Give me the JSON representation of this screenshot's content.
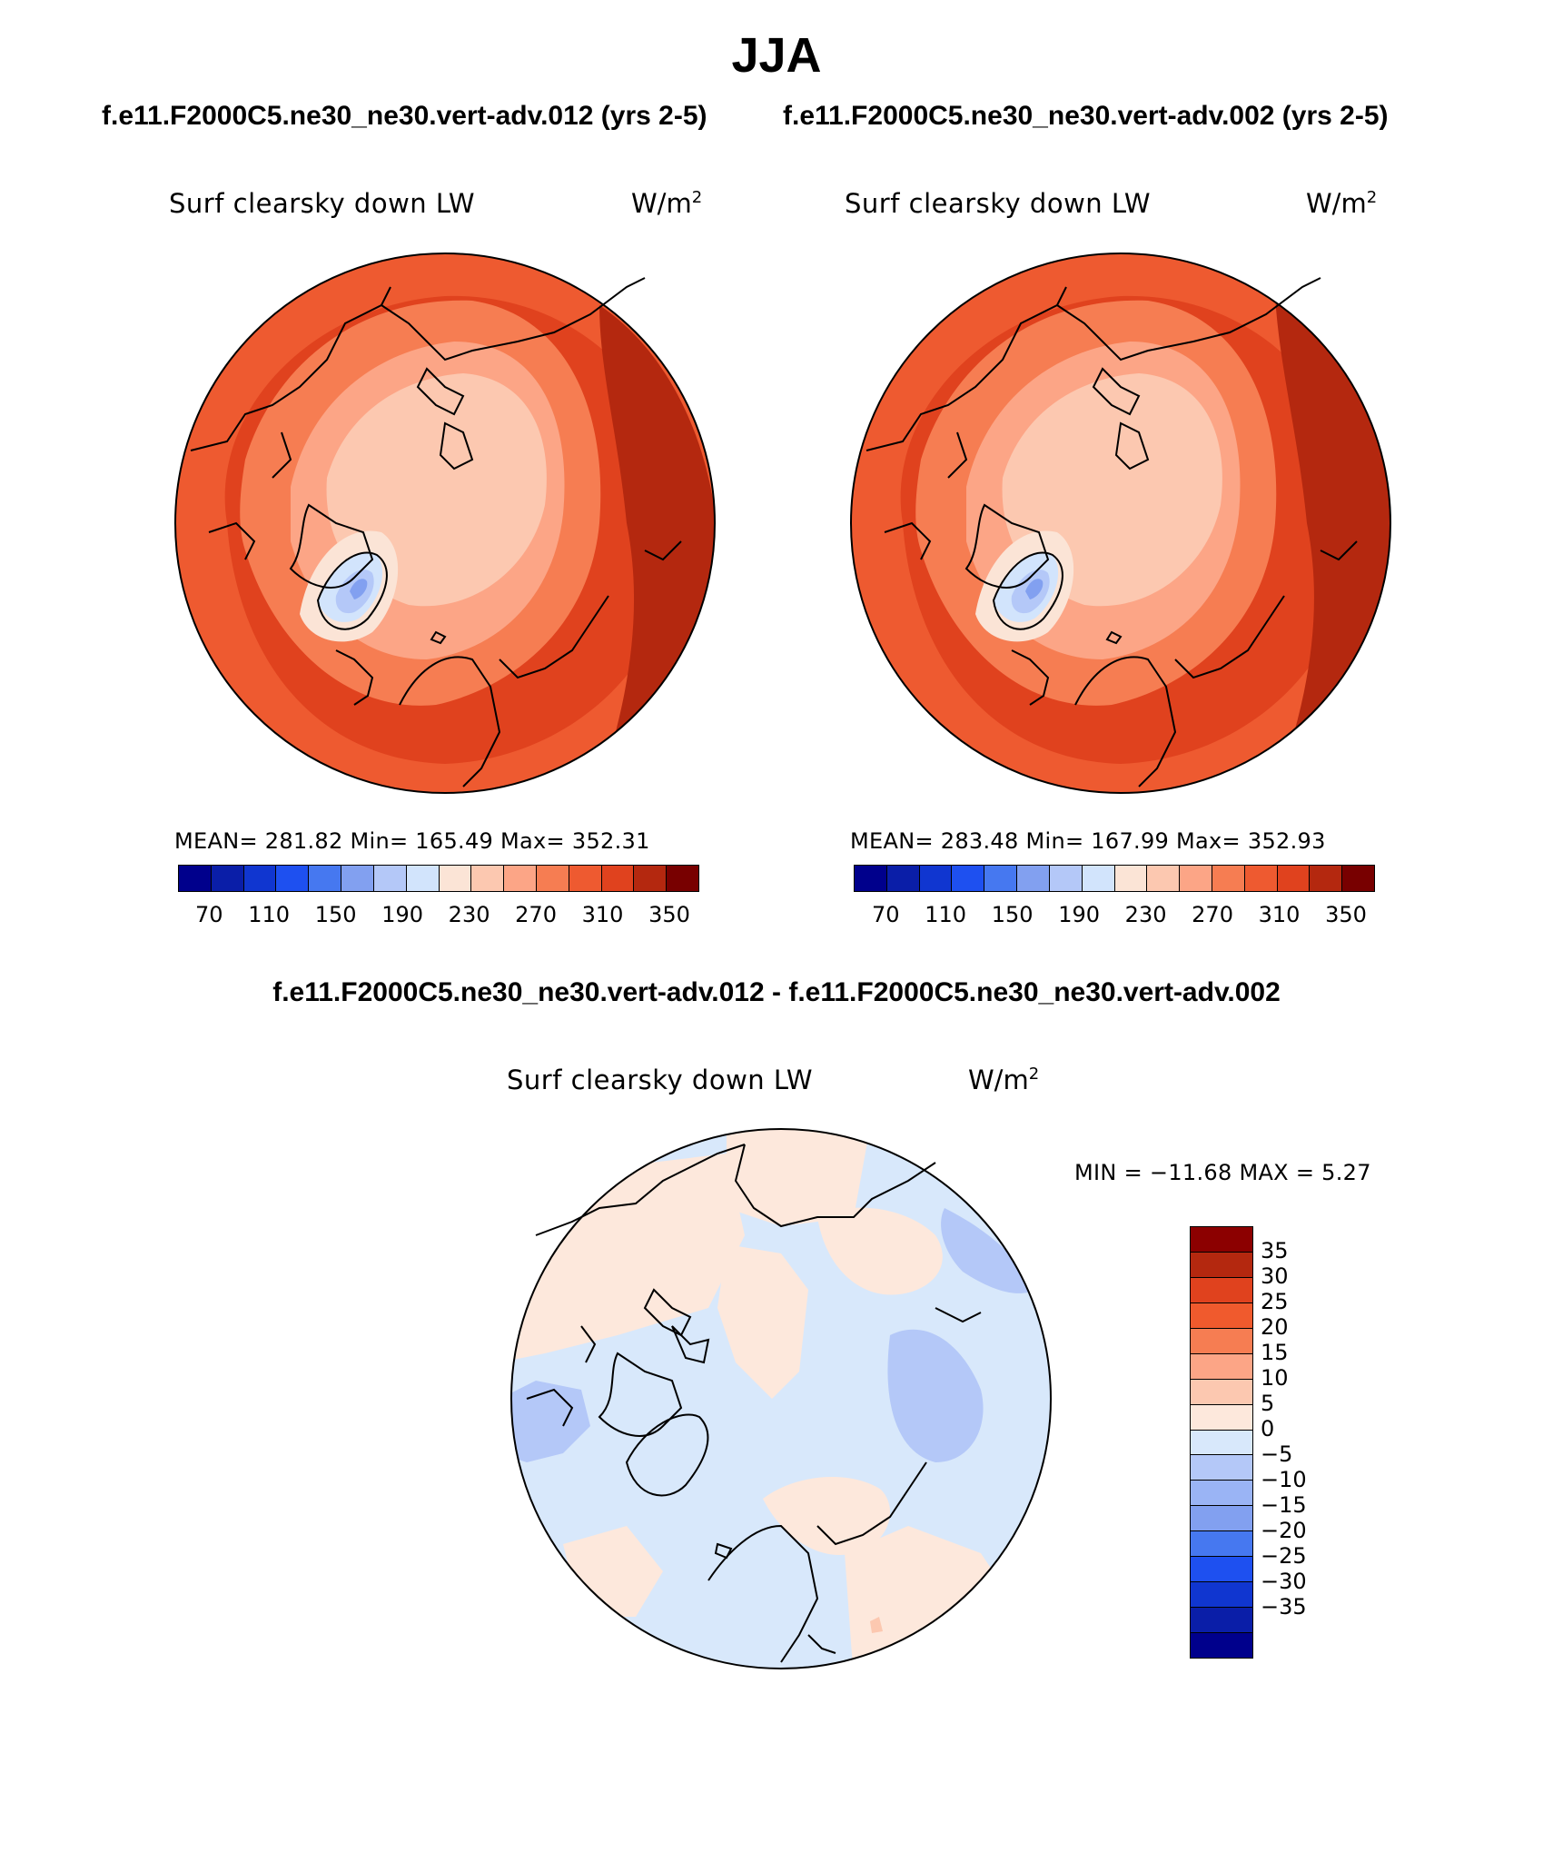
{
  "season": "JJA",
  "panels": [
    {
      "case": "f.e11.F2000C5.ne30_ne30.vert-adv.012 (yrs 2-5)",
      "variable": "Surf clearsky down LW",
      "units": "W/m",
      "units_sup": "2",
      "stats": "MEAN= 281.82   Min= 165.49   Max= 352.31",
      "colorbar_labels": [
        "70",
        "110",
        "150",
        "190",
        "230",
        "270",
        "310",
        "350"
      ]
    },
    {
      "case": "f.e11.F2000C5.ne30_ne30.vert-adv.002 (yrs 2-5)",
      "variable": "Surf clearsky down LW",
      "units": "W/m",
      "units_sup": "2",
      "stats": "MEAN= 283.48   Min= 167.99   Max= 352.93",
      "colorbar_labels": [
        "70",
        "110",
        "150",
        "190",
        "230",
        "270",
        "310",
        "350"
      ]
    }
  ],
  "difference": {
    "title": "f.e11.F2000C5.ne30_ne30.vert-adv.012 - f.e11.F2000C5.ne30_ne30.vert-adv.002",
    "variable": "Surf clearsky down LW",
    "units": "W/m",
    "units_sup": "2",
    "minmax": "MIN = −11.68 MAX =    5.27",
    "colorbar_labels": [
      "35",
      "30",
      "25",
      "20",
      "15",
      "10",
      "5",
      "0",
      "−5",
      "−10",
      "−15",
      "−20",
      "−25",
      "−30",
      "−35"
    ]
  },
  "colors": {
    "field_scale": [
      "#00008c",
      "#0a1ea8",
      "#1036d0",
      "#1e50f0",
      "#4678f0",
      "#82a0f0",
      "#b4c8f8",
      "#d2e4fc",
      "#fbe4d6",
      "#fcc8b0",
      "#fca586",
      "#f67d52",
      "#ee5a30",
      "#e0421e",
      "#b4280f",
      "#780000"
    ],
    "diff_scale": [
      "#8c0000",
      "#b4280f",
      "#e0421e",
      "#f05a2d",
      "#f67d52",
      "#fca586",
      "#fcc8b0",
      "#fde8dc",
      "#d8e8fb",
      "#b4c8f8",
      "#9ab4f5",
      "#82a0f0",
      "#4678f0",
      "#1e50f0",
      "#1036d0",
      "#0a1ea8",
      "#00008c"
    ],
    "coast": "#000000"
  }
}
